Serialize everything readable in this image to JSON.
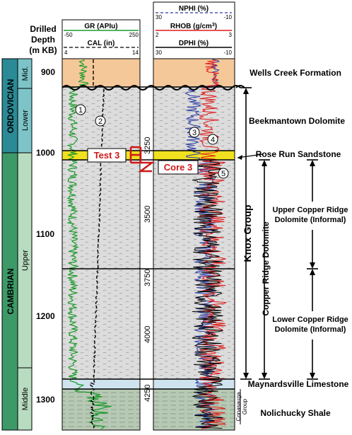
{
  "depth_header": [
    "Drilled",
    "Depth",
    "(m KB)"
  ],
  "depth_ticks": [
    "900",
    "1000",
    "1100",
    "1200",
    "1300"
  ],
  "track1": {
    "gr": {
      "label": "GR (APIu)",
      "min": "-50",
      "max": "250",
      "color": "#1a9a2a"
    },
    "cal": {
      "label": "CAL (in)",
      "min": "4",
      "max": "14"
    }
  },
  "track2": {
    "nphi": {
      "label": "NPHI (%)",
      "min": "30",
      "max": "-10",
      "color": "#2a3aa0"
    },
    "rhob": {
      "label": "RHOB (g/cm",
      "sup": "3",
      "close": ")",
      "min": "2",
      "max": "3",
      "color": "#e01818"
    },
    "dphi": {
      "label": "DPHI (%)",
      "min": "30",
      "max": "-10"
    }
  },
  "systems": [
    {
      "system": "ORDOVICIAN",
      "series": [
        "Mid.",
        "Lower"
      ],
      "color": "#2a8a96",
      "series_color": "#7cc4c8"
    },
    {
      "system": "CAMBRIAN",
      "series": [
        "Upper",
        "Middle"
      ],
      "color": "#3d9a68",
      "series_color": "#b8dcc0"
    }
  ],
  "core_depths": [
    "3250",
    "3500",
    "3750",
    "4000",
    "4250"
  ],
  "markers": {
    "test": "Test 3",
    "core": "Core 3"
  },
  "circle_labels": [
    "1",
    "2",
    "3",
    "4",
    "5"
  ],
  "formations": {
    "wells_creek": "Wells Creek Formation",
    "beekmantown": "Beekmantown Dolomite",
    "rose_run": "Rose Run Sandstone",
    "upper_ccr": [
      "Upper Copper Ridge",
      "Dolomite (Informal)"
    ],
    "lower_ccr": [
      "Lower Copper Ridge",
      "Dolomite (Informal)"
    ],
    "maynardsville": "Maynardsville Limestone",
    "nolichucky": "Nolichucky Shale"
  },
  "groups": {
    "knox": "Knox Group",
    "copper_ridge": "Copper Ridge Dolomite",
    "conasauga": [
      "Conasauga",
      "Group"
    ]
  },
  "colors": {
    "wells_creek": "#f5c89a",
    "dolomite": "#dcdcdc",
    "rose_run": "#f0e020",
    "limestone": "#cfe3ee",
    "shale": "#b7c9b4"
  }
}
